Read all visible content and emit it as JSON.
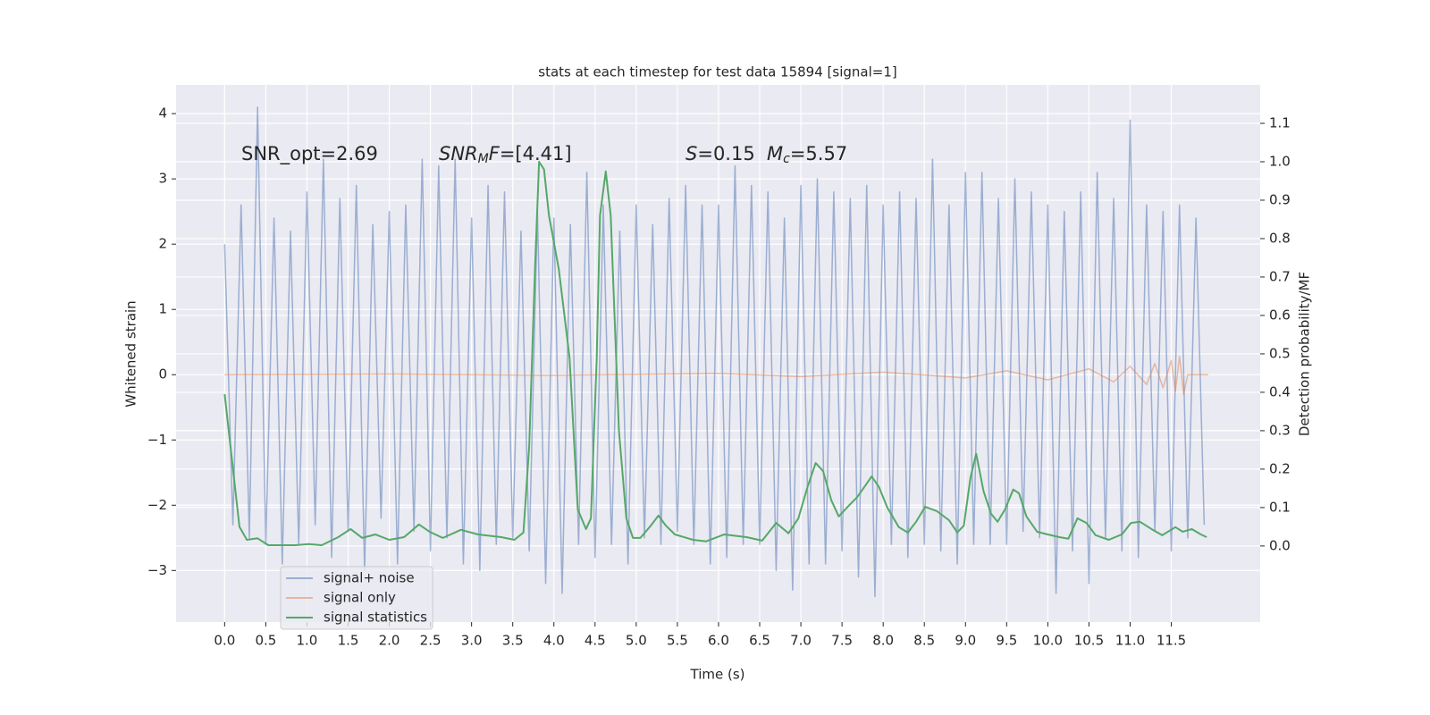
{
  "chart_data": {
    "type": "line",
    "title": "stats at each timestep for test data 15894 [signal=1]",
    "xlabel": "Time (s)",
    "ylabel": "Whitened strain",
    "y2label": "Detection probability/MF",
    "xlim": [
      -0.59,
      12.58
    ],
    "ylim": [
      -3.79,
      4.44
    ],
    "y2lim": [
      -0.198,
      1.2
    ],
    "xticks": [
      {
        "value": 0,
        "label": "0.0"
      },
      {
        "value": 0.5,
        "label": "0.5"
      },
      {
        "value": 1,
        "label": "1.0"
      },
      {
        "value": 1.5,
        "label": "1.5"
      },
      {
        "value": 2,
        "label": "2.0"
      },
      {
        "value": 2.5,
        "label": "2.5"
      },
      {
        "value": 3,
        "label": "3.0"
      },
      {
        "value": 3.5,
        "label": "3.5"
      },
      {
        "value": 4,
        "label": "4.0"
      },
      {
        "value": 4.5,
        "label": "4.5"
      },
      {
        "value": 5,
        "label": "5.0"
      },
      {
        "value": 5.5,
        "label": "5.5"
      },
      {
        "value": 6,
        "label": "6.0"
      },
      {
        "value": 6.5,
        "label": "6.5"
      },
      {
        "value": 7,
        "label": "7.0"
      },
      {
        "value": 7.5,
        "label": "7.5"
      },
      {
        "value": 8,
        "label": "8.0"
      },
      {
        "value": 8.5,
        "label": "8.5"
      },
      {
        "value": 9,
        "label": "9.0"
      },
      {
        "value": 9.5,
        "label": "9.5"
      },
      {
        "value": 10,
        "label": "10.0"
      },
      {
        "value": 10.5,
        "label": "10.5"
      },
      {
        "value": 11,
        "label": "11.0"
      },
      {
        "value": 11.5,
        "label": "11.5"
      }
    ],
    "yticks": [
      {
        "value": -3,
        "label": "−3"
      },
      {
        "value": -2,
        "label": "−2"
      },
      {
        "value": -1,
        "label": "−1"
      },
      0,
      1,
      2,
      3,
      4
    ],
    "y2ticks": [
      {
        "value": 0,
        "label": "0.0"
      },
      {
        "value": 0.1,
        "label": "0.1"
      },
      {
        "value": 0.2,
        "label": "0.2"
      },
      {
        "value": 0.3,
        "label": "0.3"
      },
      {
        "value": 0.4,
        "label": "0.4"
      },
      {
        "value": 0.5,
        "label": "0.5"
      },
      {
        "value": 0.6,
        "label": "0.6"
      },
      {
        "value": 0.7,
        "label": "0.7"
      },
      {
        "value": 0.8,
        "label": "0.8"
      },
      {
        "value": 0.9,
        "label": "0.9"
      },
      {
        "value": 1,
        "label": "1.0"
      },
      {
        "value": 1.1,
        "label": "1.1"
      }
    ],
    "grid": true,
    "annotations": [
      {
        "parts": [
          {
            "text": "SNR_opt=2.69"
          }
        ]
      },
      {
        "parts": [
          {
            "text": "SNR",
            "italic": true
          },
          {
            "text": "M",
            "italic": true,
            "sub": true
          },
          {
            "text": "F",
            "italic": true
          },
          {
            "text": "=[4.41]"
          }
        ]
      },
      {
        "parts": [
          {
            "text": "S",
            "italic": true
          },
          {
            "text": "=0.15"
          }
        ]
      },
      {
        "parts": [
          {
            "text": "M",
            "italic": true
          },
          {
            "text": "c",
            "italic": true,
            "sub": true
          },
          {
            "text": "=5.57"
          }
        ]
      }
    ],
    "series": [
      {
        "name": "signal+ noise",
        "color": "#4c72b0",
        "alpha": 0.5,
        "x": [
          0,
          0.1,
          0.2,
          0.3,
          0.4,
          0.5,
          0.6,
          0.7,
          0.8,
          0.9,
          1,
          1.1,
          1.2,
          1.3,
          1.4,
          1.5,
          1.6,
          1.7,
          1.8,
          1.9,
          2,
          2.1,
          2.2,
          2.3,
          2.4,
          2.5,
          2.6,
          2.7,
          2.8,
          2.9,
          3,
          3.1,
          3.2,
          3.3,
          3.4,
          3.5,
          3.6,
          3.7,
          3.8,
          3.9,
          4,
          4.1,
          4.2,
          4.3,
          4.4,
          4.5,
          4.6,
          4.7,
          4.8,
          4.9,
          5,
          5.1,
          5.2,
          5.3,
          5.4,
          5.5,
          5.6,
          5.7,
          5.8,
          5.9,
          6,
          6.1,
          6.2,
          6.3,
          6.4,
          6.5,
          6.6,
          6.7,
          6.8,
          6.9,
          7,
          7.1,
          7.2,
          7.3,
          7.4,
          7.5,
          7.6,
          7.7,
          7.8,
          7.9,
          8,
          8.1,
          8.2,
          8.3,
          8.4,
          8.5,
          8.6,
          8.7,
          8.8,
          8.9,
          9,
          9.1,
          9.2,
          9.3,
          9.4,
          9.5,
          9.6,
          9.7,
          9.8,
          9.9,
          10,
          10.1,
          10.2,
          10.3,
          10.4,
          10.5,
          10.6,
          10.7,
          10.8,
          10.9,
          11,
          11.1,
          11.2,
          11.3,
          11.4,
          11.5,
          11.6,
          11.7,
          11.8,
          11.9
        ],
        "values": [
          2.0,
          -2.3,
          2.6,
          -2.5,
          4.1,
          -2.6,
          2.4,
          -2.9,
          2.2,
          -2.6,
          2.8,
          -2.3,
          3.3,
          -2.8,
          2.7,
          -2.4,
          2.9,
          -3.0,
          2.3,
          -2.2,
          2.5,
          -2.9,
          2.6,
          -2.4,
          3.3,
          -2.7,
          3.2,
          -2.5,
          3.3,
          -2.9,
          2.4,
          -3.0,
          2.9,
          -2.6,
          2.8,
          -2.5,
          2.2,
          -2.7,
          2.5,
          -3.2,
          2.4,
          -3.35,
          2.3,
          -2.6,
          3.1,
          -2.8,
          2.6,
          -2.6,
          2.2,
          -2.9,
          2.6,
          -2.5,
          2.3,
          -2.6,
          2.7,
          -2.4,
          2.9,
          -2.6,
          2.6,
          -2.9,
          2.6,
          -2.8,
          3.2,
          -2.6,
          2.9,
          -2.6,
          2.8,
          -3.0,
          2.4,
          -3.3,
          2.9,
          -2.9,
          3.0,
          -2.9,
          2.8,
          -2.7,
          2.7,
          -3.1,
          2.9,
          -3.4,
          2.6,
          -2.6,
          2.8,
          -2.8,
          2.7,
          -2.6,
          3.3,
          -2.7,
          2.6,
          -2.9,
          3.1,
          -2.6,
          3.1,
          -2.6,
          2.7,
          -2.6,
          3.0,
          -2.4,
          2.8,
          -2.5,
          2.6,
          -3.35,
          2.5,
          -2.7,
          2.8,
          -3.2,
          3.1,
          -2.5,
          2.7,
          -2.7,
          3.9,
          -2.8,
          2.6,
          -2.4,
          2.5,
          -2.7,
          2.6,
          -2.5,
          2.4,
          -2.3
        ]
      },
      {
        "name": "signal only",
        "color": "#dd8452",
        "alpha": 0.5,
        "x": [
          0,
          2,
          4,
          6,
          7,
          8,
          9,
          9.5,
          10,
          10.5,
          10.8,
          11,
          11.2,
          11.3,
          11.4,
          11.5,
          11.55,
          11.6,
          11.65,
          11.7,
          11.95
        ],
        "values": [
          0,
          0.01,
          -0.01,
          0.02,
          -0.03,
          0.04,
          -0.05,
          0.06,
          -0.08,
          0.09,
          -0.11,
          0.13,
          -0.15,
          0.17,
          -0.2,
          0.22,
          -0.25,
          0.28,
          -0.3,
          0,
          0
        ]
      },
      {
        "name": "signal statistics",
        "color": "#55a868",
        "alpha": 1,
        "axis": "y2",
        "x": [
          0,
          0.12,
          0.18,
          0.27,
          0.4,
          0.53,
          0.86,
          1.02,
          1.18,
          1.38,
          1.53,
          1.67,
          1.83,
          2.0,
          2.18,
          2.36,
          2.49,
          2.65,
          2.87,
          3.08,
          3.36,
          3.52,
          3.63,
          3.7,
          3.77,
          3.82,
          3.88,
          3.94,
          4.06,
          4.19,
          4.29,
          4.39,
          4.45,
          4.52,
          4.56,
          4.63,
          4.69,
          4.79,
          4.88,
          4.96,
          5.05,
          5.17,
          5.27,
          5.36,
          5.47,
          5.69,
          5.85,
          6.07,
          6.34,
          6.53,
          6.7,
          6.85,
          6.97,
          7.08,
          7.18,
          7.27,
          7.37,
          7.46,
          7.56,
          7.68,
          7.77,
          7.86,
          7.95,
          8.05,
          8.19,
          8.3,
          8.4,
          8.51,
          8.65,
          8.8,
          8.9,
          8.98,
          9.06,
          9.13,
          9.22,
          9.31,
          9.39,
          9.48,
          9.58,
          9.65,
          9.74,
          9.87,
          10.0,
          10.14,
          10.25,
          10.36,
          10.47,
          10.58,
          10.74,
          10.9,
          11.01,
          11.12,
          11.26,
          11.39,
          11.55,
          11.64,
          11.75,
          11.86,
          11.93
        ],
        "values": [
          0.395,
          0.165,
          0.05,
          0.016,
          0.02,
          0.002,
          0.002,
          0.005,
          0.002,
          0.023,
          0.044,
          0.021,
          0.03,
          0.016,
          0.023,
          0.056,
          0.037,
          0.021,
          0.042,
          0.03,
          0.023,
          0.016,
          0.035,
          0.26,
          0.72,
          1.0,
          0.98,
          0.86,
          0.72,
          0.49,
          0.095,
          0.044,
          0.072,
          0.49,
          0.86,
          0.975,
          0.86,
          0.3,
          0.072,
          0.021,
          0.021,
          0.051,
          0.079,
          0.053,
          0.03,
          0.016,
          0.012,
          0.03,
          0.023,
          0.014,
          0.06,
          0.033,
          0.072,
          0.153,
          0.216,
          0.195,
          0.119,
          0.077,
          0.1,
          0.126,
          0.153,
          0.181,
          0.153,
          0.1,
          0.049,
          0.035,
          0.063,
          0.102,
          0.091,
          0.067,
          0.035,
          0.053,
          0.177,
          0.24,
          0.142,
          0.084,
          0.063,
          0.095,
          0.147,
          0.137,
          0.077,
          0.037,
          0.03,
          0.023,
          0.019,
          0.072,
          0.06,
          0.028,
          0.016,
          0.03,
          0.06,
          0.063,
          0.044,
          0.028,
          0.049,
          0.037,
          0.044,
          0.03,
          0.023
        ]
      }
    ]
  }
}
